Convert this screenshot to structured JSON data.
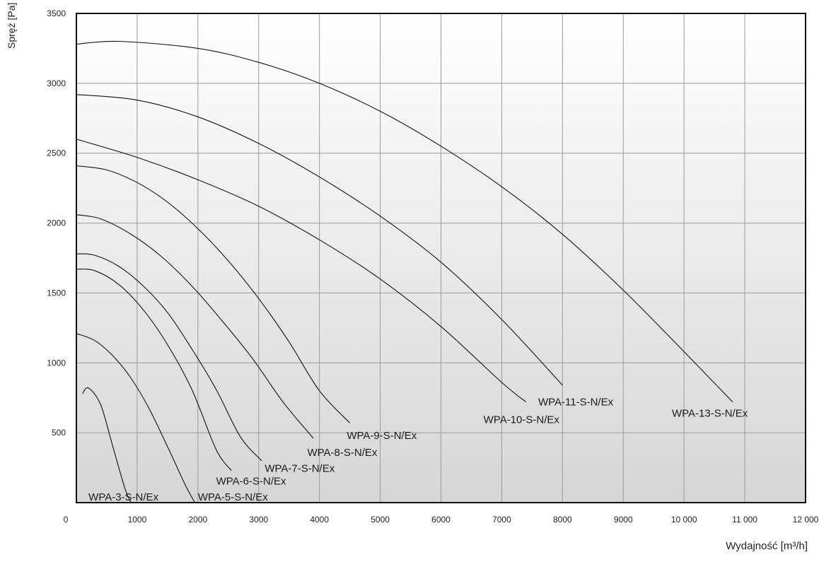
{
  "chart_data": {
    "type": "line",
    "title": "",
    "xlabel": "Wydajność [m³/h]",
    "ylabel": "Spręż [Pa]",
    "xlim": [
      0,
      12000
    ],
    "ylim": [
      0,
      3500
    ],
    "x_ticks": [
      "0",
      "1000",
      "2000",
      "3000",
      "4000",
      "5000",
      "6000",
      "7000",
      "8000",
      "9000",
      "10 000",
      "11 000",
      "12 000"
    ],
    "y_ticks": [
      "500",
      "1000",
      "1500",
      "2000",
      "2500",
      "3000",
      "3500"
    ],
    "grid": true,
    "background": "vertical gradient white to light grey",
    "series": [
      {
        "name": "WPA-3-S-N/Ex",
        "x": [
          100,
          200,
          400,
          600,
          800,
          900
        ],
        "y": [
          780,
          820,
          700,
          400,
          100,
          0
        ]
      },
      {
        "name": "WPA-5-S-N/Ex",
        "x": [
          0,
          300,
          600,
          900,
          1200,
          1500,
          1800,
          1950
        ],
        "y": [
          1210,
          1160,
          1050,
          890,
          670,
          400,
          120,
          0
        ]
      },
      {
        "name": "WPA-6-S-N/Ex",
        "x": [
          0,
          300,
          700,
          1100,
          1500,
          1900,
          2300,
          2550
        ],
        "y": [
          1670,
          1660,
          1560,
          1380,
          1130,
          810,
          380,
          230
        ]
      },
      {
        "name": "WPA-7-S-N/Ex",
        "x": [
          0,
          300,
          700,
          1100,
          1500,
          1900,
          2300,
          2700,
          3050
        ],
        "y": [
          1780,
          1770,
          1690,
          1550,
          1360,
          1100,
          810,
          470,
          300
        ]
      },
      {
        "name": "WPA-8-S-N/Ex",
        "x": [
          0,
          400,
          900,
          1400,
          1900,
          2400,
          2900,
          3400,
          3900
        ],
        "y": [
          2060,
          2030,
          1920,
          1760,
          1550,
          1300,
          1030,
          720,
          460
        ]
      },
      {
        "name": "WPA-9-S-N/Ex",
        "x": [
          0,
          500,
          1000,
          1500,
          2000,
          2500,
          3000,
          3500,
          4000,
          4500
        ],
        "y": [
          2410,
          2380,
          2290,
          2150,
          1960,
          1730,
          1460,
          1150,
          800,
          570
        ]
      },
      {
        "name": "WPA-10-S-N/Ex",
        "x": [
          0,
          1000,
          2000,
          3000,
          4000,
          5000,
          6000,
          7000,
          7400
        ],
        "y": [
          2600,
          2470,
          2310,
          2120,
          1880,
          1600,
          1260,
          860,
          720
        ]
      },
      {
        "name": "WPA-11-S-N/Ex",
        "x": [
          0,
          1000,
          2000,
          3000,
          4000,
          5000,
          6000,
          7000,
          8000
        ],
        "y": [
          2920,
          2880,
          2760,
          2570,
          2330,
          2050,
          1720,
          1310,
          840
        ]
      },
      {
        "name": "WPA-13-S-N/Ex",
        "x": [
          0,
          700,
          2000,
          3000,
          4000,
          5000,
          6000,
          7000,
          8000,
          9000,
          10000,
          10800
        ],
        "y": [
          3280,
          3300,
          3250,
          3150,
          3000,
          2800,
          2550,
          2260,
          1920,
          1520,
          1080,
          720
        ]
      }
    ]
  },
  "labels": [
    {
      "text": "WPA-3-S-N/Ex",
      "x": 200,
      "y": 15
    },
    {
      "text": "WPA-5-S-N/Ex",
      "x": 2000,
      "y": 15
    },
    {
      "text": "WPA-6-S-N/Ex",
      "x": 2300,
      "y": 130
    },
    {
      "text": "WPA-7-S-N/Ex",
      "x": 3100,
      "y": 220
    },
    {
      "text": "WPA-8-S-N/Ex",
      "x": 3800,
      "y": 335
    },
    {
      "text": "WPA-9-S-N/Ex",
      "x": 4450,
      "y": 455
    },
    {
      "text": "WPA-10-S-N/Ex",
      "x": 6700,
      "y": 570
    },
    {
      "text": "WPA-11-S-N/Ex",
      "x": 7600,
      "y": 695
    },
    {
      "text": "WPA-13-S-N/Ex",
      "x": 9800,
      "y": 615
    }
  ],
  "label_leaders": [
    {
      "series": "WPA-3-S-N/Ex",
      "to": [
        900,
        0
      ]
    },
    {
      "series": "WPA-5-S-N/Ex",
      "to": [
        1950,
        0
      ]
    },
    {
      "series": "WPA-6-S-N/Ex",
      "to": [
        2550,
        230
      ]
    },
    {
      "series": "WPA-7-S-N/Ex",
      "to": [
        3050,
        300
      ]
    },
    {
      "series": "WPA-8-S-N/Ex",
      "to": [
        3900,
        460
      ]
    },
    {
      "series": "WPA-9-S-N/Ex",
      "to": [
        4500,
        570
      ]
    },
    {
      "series": "WPA-10-S-N/Ex",
      "to": [
        7400,
        720
      ]
    },
    {
      "series": "WPA-11-S-N/Ex",
      "to": [
        8000,
        840
      ]
    },
    {
      "series": "WPA-13-S-N/Ex",
      "to": [
        10800,
        720
      ]
    }
  ]
}
